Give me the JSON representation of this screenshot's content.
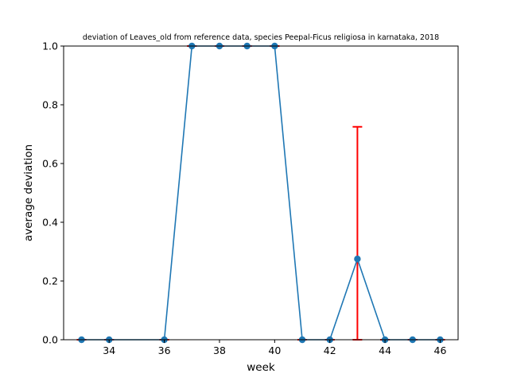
{
  "chart_data": {
    "type": "line",
    "title": "deviation of Leaves_old from reference data, species Peepal-Ficus religiosa in karnataka, 2018",
    "xlabel": "week",
    "ylabel": "average deviation",
    "xlim": [
      32.35,
      46.65
    ],
    "ylim": [
      0,
      1
    ],
    "xticks": [
      34,
      36,
      38,
      40,
      42,
      44,
      46
    ],
    "yticks": [
      0.0,
      0.2,
      0.4,
      0.6,
      0.8,
      1.0
    ],
    "grid": false,
    "line_color": "#1f77b4",
    "error_color": "#ff0000",
    "series": [
      {
        "x": [
          33,
          34,
          36,
          37,
          38,
          39,
          40,
          41,
          42,
          43,
          44,
          45,
          46
        ],
        "y": [
          0,
          0,
          0,
          1,
          1,
          1,
          1,
          0,
          0,
          0.275,
          0,
          0,
          0
        ],
        "yerr_upper": [
          0,
          0,
          0,
          0,
          0,
          0,
          0,
          0,
          0,
          0.45,
          0,
          0,
          0
        ],
        "yerr_lower": [
          0,
          0,
          0,
          0,
          0,
          0,
          0,
          0,
          0,
          0.275,
          0,
          0,
          0
        ]
      }
    ]
  }
}
